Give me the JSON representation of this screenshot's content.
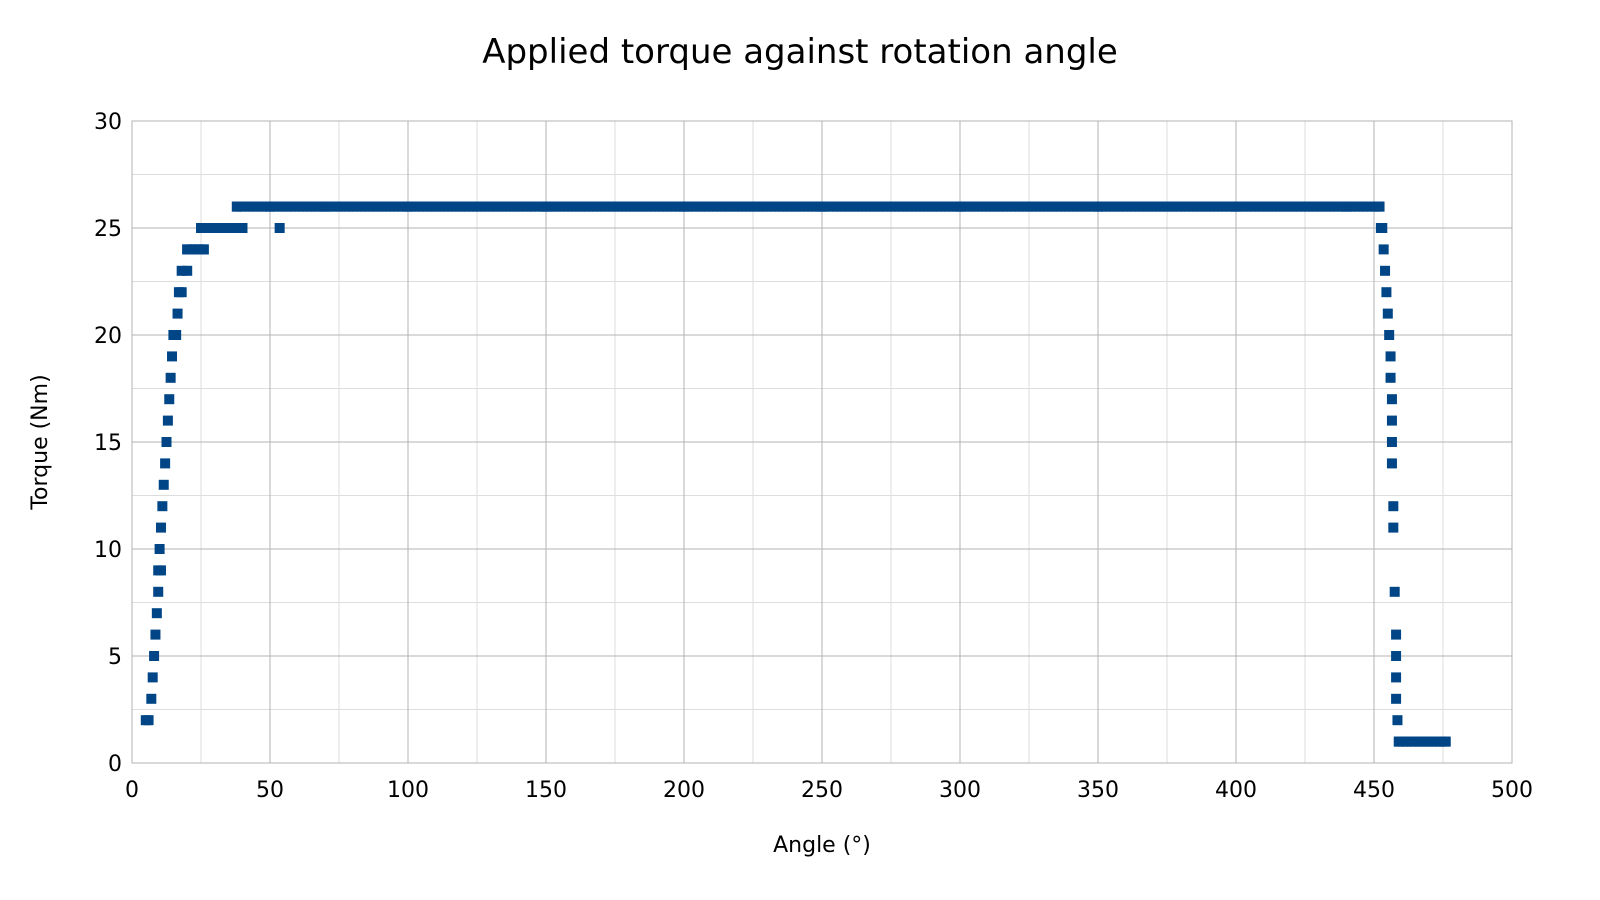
{
  "chart_data": {
    "type": "scatter",
    "title": "Applied torque against rotation angle",
    "xlabel": "Angle (°)",
    "ylabel": "Torque (Nm)",
    "xlim": [
      0,
      500
    ],
    "ylim": [
      0,
      30
    ],
    "x_ticks": [
      0,
      50,
      100,
      150,
      200,
      250,
      300,
      350,
      400,
      450,
      500
    ],
    "y_ticks": [
      0,
      5,
      10,
      15,
      20,
      25,
      30
    ],
    "grid": true,
    "minor_grid": true,
    "legend": "none",
    "marker": "square",
    "color": "#004586",
    "series": [
      {
        "points": [
          [
            5,
            2
          ],
          [
            6,
            2
          ],
          [
            7,
            3
          ],
          [
            7.5,
            4
          ],
          [
            8,
            5
          ],
          [
            8.5,
            6
          ],
          [
            9,
            7
          ],
          [
            9.5,
            8
          ],
          [
            9.5,
            9
          ],
          [
            10.5,
            9
          ],
          [
            10,
            10
          ],
          [
            10.5,
            11
          ],
          [
            11,
            12
          ],
          [
            11.5,
            13
          ],
          [
            12,
            14
          ],
          [
            12.5,
            15
          ],
          [
            13,
            16
          ],
          [
            13.5,
            17
          ],
          [
            14,
            18
          ],
          [
            14.5,
            19
          ],
          [
            15,
            20
          ],
          [
            16,
            20
          ],
          [
            16.5,
            21
          ],
          [
            17,
            22
          ],
          [
            18,
            22
          ],
          [
            18,
            23
          ],
          [
            20,
            23
          ],
          [
            20,
            24
          ],
          [
            22,
            24
          ],
          [
            24,
            24
          ],
          [
            26,
            24
          ],
          [
            25,
            25
          ],
          [
            28,
            25
          ],
          [
            31,
            25
          ],
          [
            34,
            25
          ],
          [
            37,
            25
          ],
          [
            40,
            25
          ],
          [
            53.5,
            25
          ],
          [
            38,
            26
          ],
          [
            50,
            26
          ],
          [
            70,
            26
          ],
          [
            100,
            26
          ],
          [
            150,
            26
          ],
          [
            200,
            26
          ],
          [
            250,
            26
          ],
          [
            300,
            26
          ],
          [
            350,
            26
          ],
          [
            400,
            26
          ],
          [
            440,
            26
          ],
          [
            452,
            26
          ],
          [
            452.5,
            25
          ],
          [
            453,
            25
          ],
          [
            453.5,
            24
          ],
          [
            454,
            23
          ],
          [
            454.5,
            22
          ],
          [
            455,
            21
          ],
          [
            455.5,
            20
          ],
          [
            456,
            19
          ],
          [
            456,
            18
          ],
          [
            456.5,
            17
          ],
          [
            456.5,
            16
          ],
          [
            456.5,
            15
          ],
          [
            456.5,
            14
          ],
          [
            457,
            12
          ],
          [
            457,
            11
          ],
          [
            457.5,
            8
          ],
          [
            458,
            6
          ],
          [
            458,
            5
          ],
          [
            458,
            4
          ],
          [
            458,
            3
          ],
          [
            458.5,
            2
          ],
          [
            459,
            1
          ],
          [
            462,
            1
          ],
          [
            466,
            1
          ],
          [
            470,
            1
          ],
          [
            474,
            1
          ],
          [
            476,
            1
          ]
        ]
      }
    ]
  }
}
